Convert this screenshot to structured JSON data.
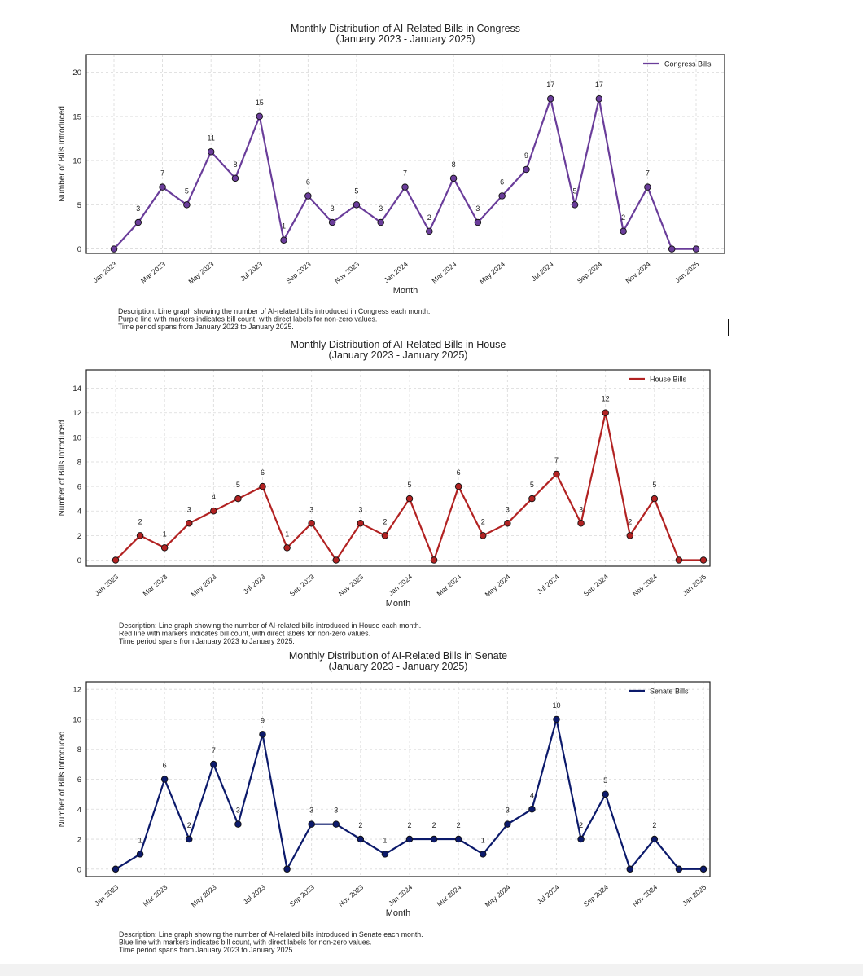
{
  "months": [
    "Jan 2023",
    "Feb 2023",
    "Mar 2023",
    "Apr 2023",
    "May 2023",
    "Jun 2023",
    "Jul 2023",
    "Aug 2023",
    "Sep 2023",
    "Oct 2023",
    "Nov 2023",
    "Dec 2023",
    "Jan 2024",
    "Feb 2024",
    "Mar 2024",
    "Apr 2024",
    "May 2024",
    "Jun 2024",
    "Jul 2024",
    "Aug 2024",
    "Sep 2024",
    "Oct 2024",
    "Nov 2024",
    "Dec 2024",
    "Jan 2025"
  ],
  "chart_data": [
    {
      "type": "line",
      "title": "Monthly Distribution of AI-Related Bills in Congress",
      "subtitle": "(January 2023 - January 2025)",
      "xlabel": "Month",
      "ylabel": "Number of Bills Introduced",
      "x_tick_labels": [
        "Jan 2023",
        "Mar 2023",
        "May 2023",
        "Jul 2023",
        "Sep 2023",
        "Nov 2023",
        "Jan 2024",
        "Mar 2024",
        "May 2024",
        "Jul 2024",
        "Sep 2024",
        "Nov 2024",
        "Jan 2025"
      ],
      "y_ticks": [
        0,
        5,
        10,
        15,
        20
      ],
      "ylim": [
        -0.5,
        22
      ],
      "grid": true,
      "legend_position": "top-right",
      "series": [
        {
          "name": "Congress Bills",
          "color": "#6a3d9a",
          "marker_color": "#6a3d9a",
          "values": [
            0,
            3,
            7,
            5,
            11,
            8,
            15,
            1,
            6,
            3,
            5,
            3,
            7,
            2,
            8,
            3,
            6,
            9,
            17,
            5,
            17,
            2,
            7,
            0,
            0
          ]
        }
      ],
      "description": [
        "Description: Line graph showing the number of AI-related bills introduced in Congress each month.",
        "Purple line with markers indicates bill count, with direct labels for non-zero values.",
        "Time period spans from January 2023 to January 2025."
      ]
    },
    {
      "type": "line",
      "title": "Monthly Distribution of AI-Related Bills in House",
      "subtitle": "(January 2023 - January 2025)",
      "xlabel": "Month",
      "ylabel": "Number of Bills Introduced",
      "x_tick_labels": [
        "Jan 2023",
        "Mar 2023",
        "May 2023",
        "Jul 2023",
        "Sep 2023",
        "Nov 2023",
        "Jan 2024",
        "Mar 2024",
        "May 2024",
        "Jul 2024",
        "Sep 2024",
        "Nov 2024",
        "Jan 2025"
      ],
      "y_ticks": [
        0,
        2,
        4,
        6,
        8,
        10,
        12,
        14
      ],
      "ylim": [
        -0.5,
        15.5
      ],
      "grid": true,
      "legend_position": "top-right",
      "series": [
        {
          "name": "House Bills",
          "color": "#b22222",
          "marker_color": "#b22222",
          "values": [
            0,
            2,
            1,
            3,
            4,
            5,
            6,
            1,
            3,
            0,
            3,
            2,
            5,
            0,
            6,
            2,
            3,
            5,
            7,
            3,
            12,
            2,
            5,
            0,
            0
          ]
        }
      ],
      "description": [
        "Description: Line graph showing the number of AI-related bills introduced in House each month.",
        "Red line with markers indicates bill count, with direct labels for non-zero values.",
        "Time period spans from January 2023 to January 2025."
      ]
    },
    {
      "type": "line",
      "title": "Monthly Distribution of AI-Related Bills in Senate",
      "subtitle": "(January 2023 - January 2025)",
      "xlabel": "Month",
      "ylabel": "Number of Bills Introduced",
      "x_tick_labels": [
        "Jan 2023",
        "Mar 2023",
        "May 2023",
        "Jul 2023",
        "Sep 2023",
        "Nov 2023",
        "Jan 2024",
        "Mar 2024",
        "May 2024",
        "Jul 2024",
        "Sep 2024",
        "Nov 2024",
        "Jan 2025"
      ],
      "y_ticks": [
        0,
        2,
        4,
        6,
        8,
        10,
        12
      ],
      "ylim": [
        -0.5,
        12.5
      ],
      "grid": true,
      "legend_position": "top-right",
      "series": [
        {
          "name": "Senate Bills",
          "color": "#0c1a6b",
          "marker_color": "#0c1a6b",
          "values": [
            0,
            1,
            6,
            2,
            7,
            3,
            9,
            0,
            3,
            3,
            2,
            1,
            2,
            2,
            2,
            1,
            3,
            4,
            10,
            2,
            5,
            0,
            2,
            0,
            0
          ]
        }
      ],
      "description": [
        "Description: Line graph showing the number of AI-related bills introduced in Senate each month.",
        "Blue line with markers indicates bill count, with direct labels for non-zero values.",
        "Time period spans from January 2023 to January 2025."
      ]
    }
  ]
}
